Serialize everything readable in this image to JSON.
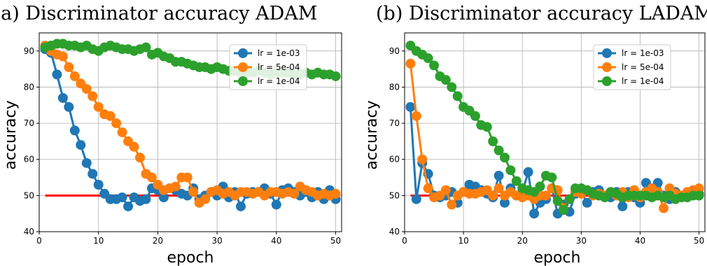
{
  "colors": {
    "lr_1e03": "#1f77b4",
    "lr_5e04": "#ff7f0e",
    "lr_1e04": "#2ca02c",
    "baseline": "#ff0000",
    "grid": "#b0b0b0"
  },
  "chart_data": [
    {
      "type": "line",
      "title": "(a) Discriminator accuracy ADAM",
      "xlabel": "epoch",
      "ylabel": "accuracy",
      "xlim": [
        0,
        51
      ],
      "ylim": [
        40,
        95
      ],
      "xticks": [
        0,
        10,
        20,
        30,
        40,
        50
      ],
      "yticks": [
        40,
        50,
        60,
        70,
        80,
        90
      ],
      "grid": true,
      "legend_position": "top-right",
      "x": [
        1,
        2,
        3,
        4,
        5,
        6,
        7,
        8,
        9,
        10,
        11,
        12,
        13,
        14,
        15,
        16,
        17,
        18,
        19,
        20,
        21,
        22,
        23,
        24,
        25,
        26,
        27,
        28,
        29,
        30,
        31,
        32,
        33,
        34,
        35,
        36,
        37,
        38,
        39,
        40,
        41,
        42,
        43,
        44,
        45,
        46,
        47,
        48,
        49,
        50
      ],
      "baseline": {
        "y": 50,
        "x_range": [
          1,
          50
        ]
      },
      "series": [
        {
          "name": "lr = 1e-03",
          "color_key": "lr_1e03",
          "values": [
            90.5,
            89.5,
            83.5,
            77,
            74.5,
            68,
            64,
            59,
            56,
            53,
            50.5,
            49,
            49,
            49.5,
            47,
            49.5,
            48.5,
            49,
            52,
            51.5,
            49.5,
            52,
            51.5,
            50.5,
            50,
            52,
            49,
            50,
            51,
            50,
            52.5,
            49.5,
            51,
            47,
            50.5,
            51,
            51,
            52,
            50.5,
            47.5,
            51.5,
            52,
            51,
            50,
            51,
            49.5,
            51,
            49,
            51.5,
            49
          ]
        },
        {
          "name": "lr = 5e-04",
          "color_key": "lr_5e04",
          "values": [
            91.5,
            90,
            89,
            88.5,
            85.5,
            83,
            81,
            79.5,
            77.5,
            74.5,
            72.5,
            72,
            70,
            67.5,
            65,
            63.5,
            60.5,
            56,
            55,
            53,
            51.5,
            52,
            52.5,
            55,
            55,
            51,
            48,
            49,
            51,
            51.5,
            50.5,
            51,
            50,
            51,
            51,
            50.5,
            51,
            50,
            51,
            51,
            50.5,
            51,
            50.5,
            52.5,
            51.5,
            51,
            50,
            50.5,
            50,
            50.5
          ]
        },
        {
          "name": "lr = 1e-04",
          "color_key": "lr_1e04",
          "values": [
            91,
            91.5,
            92,
            92,
            91.5,
            91.5,
            91,
            91.5,
            90.5,
            90,
            91,
            91.5,
            91,
            90.5,
            90.5,
            90,
            90.5,
            91,
            89,
            89.5,
            88.5,
            88,
            87,
            87,
            86.5,
            86,
            85.5,
            85.5,
            85,
            85.5,
            85,
            84.5,
            84.5,
            84,
            84,
            84,
            84.5,
            84,
            83.5,
            84,
            84,
            84,
            83.5,
            83.5,
            84,
            83.5,
            84,
            83.5,
            83.5,
            83
          ]
        }
      ]
    },
    {
      "type": "line",
      "title": "(b) Discriminator accuracy LADAM",
      "xlabel": "epoch",
      "ylabel": "accuracy",
      "xlim": [
        0,
        51
      ],
      "ylim": [
        40,
        95
      ],
      "xticks": [
        0,
        10,
        20,
        30,
        40,
        50
      ],
      "yticks": [
        40,
        50,
        60,
        70,
        80,
        90
      ],
      "grid": true,
      "legend_position": "top-right",
      "x": [
        1,
        2,
        3,
        4,
        5,
        6,
        7,
        8,
        9,
        10,
        11,
        12,
        13,
        14,
        15,
        16,
        17,
        18,
        19,
        20,
        21,
        22,
        23,
        24,
        25,
        26,
        27,
        28,
        29,
        30,
        31,
        32,
        33,
        34,
        35,
        36,
        37,
        38,
        39,
        40,
        41,
        42,
        43,
        44,
        45,
        46,
        47,
        48,
        49,
        50
      ],
      "baseline": {
        "y": 50,
        "x_range": [
          1,
          50
        ]
      },
      "series": [
        {
          "name": "lr = 1e-03",
          "color_key": "lr_1e03",
          "values": [
            74.5,
            49,
            59,
            56,
            50,
            49.5,
            50,
            51,
            48,
            51,
            53,
            52.5,
            51.5,
            50.5,
            49.5,
            55.5,
            48,
            52,
            50,
            51,
            56.5,
            45,
            48,
            49,
            52,
            45,
            47.5,
            45.5,
            50.5,
            51,
            48,
            51,
            51.5,
            50,
            49.5,
            51,
            47,
            51,
            49.5,
            48,
            53.5,
            50,
            53.5,
            50,
            49,
            51,
            50,
            50.5,
            51,
            50.5
          ]
        },
        {
          "name": "lr = 5e-04",
          "color_key": "lr_5e04",
          "values": [
            86.5,
            72,
            60,
            52,
            49.5,
            50,
            51.5,
            47.5,
            50,
            51,
            50.5,
            50.5,
            51,
            51.5,
            50,
            52,
            50,
            51,
            50,
            49.5,
            50,
            49,
            50,
            50,
            52,
            51.5,
            46.5,
            49,
            51,
            50.5,
            51.5,
            50,
            50.5,
            50,
            51,
            50,
            51,
            49.5,
            51.5,
            49.5,
            51,
            52,
            51,
            46.5,
            52,
            50.5,
            50,
            51,
            51.5,
            52
          ]
        },
        {
          "name": "lr = 1e-04",
          "color_key": "lr_1e04",
          "values": [
            91.5,
            90,
            89,
            88,
            86,
            83,
            82,
            80,
            77.5,
            74.5,
            73.5,
            72,
            69.5,
            69,
            65,
            62.5,
            60.5,
            57,
            54,
            52,
            51.5,
            51,
            52.5,
            55.5,
            55,
            48.5,
            46,
            49,
            52,
            52,
            51.5,
            50.5,
            50,
            49.5,
            51,
            50.5,
            49.5,
            50,
            50,
            50,
            50,
            49.5,
            50,
            49.5,
            50,
            49,
            49.5,
            49.5,
            50,
            50
          ]
        }
      ]
    }
  ]
}
